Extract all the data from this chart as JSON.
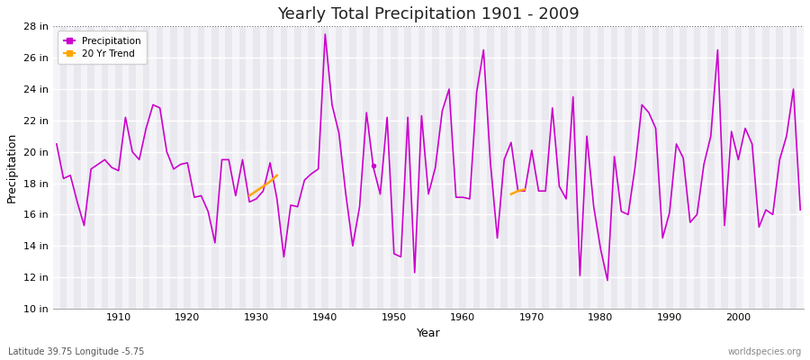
{
  "title": "Yearly Total Precipitation 1901 - 2009",
  "xlabel": "Year",
  "ylabel": "Precipitation",
  "footnote_left": "Latitude 39.75 Longitude -5.75",
  "footnote_right": "worldspecies.org",
  "ylim": [
    10,
    28
  ],
  "ytick_labels": [
    "10 in",
    "12 in",
    "14 in",
    "16 in",
    "18 in",
    "20 in",
    "22 in",
    "24 in",
    "26 in",
    "28 in"
  ],
  "ytick_values": [
    10,
    12,
    14,
    16,
    18,
    20,
    22,
    24,
    26,
    28
  ],
  "xtick_values": [
    1910,
    1920,
    1930,
    1940,
    1950,
    1960,
    1970,
    1980,
    1990,
    2000
  ],
  "fig_bg_color": "#ffffff",
  "plot_bg_color": "#e8e8ee",
  "stripe_color": "#f4f4f8",
  "line_color": "#cc00cc",
  "trend_color": "#FFA500",
  "years": [
    1901,
    1902,
    1903,
    1904,
    1905,
    1906,
    1907,
    1908,
    1909,
    1910,
    1911,
    1912,
    1913,
    1914,
    1915,
    1916,
    1917,
    1918,
    1919,
    1920,
    1921,
    1922,
    1923,
    1924,
    1925,
    1926,
    1927,
    1928,
    1929,
    1930,
    1931,
    1932,
    1933,
    1934,
    1935,
    1936,
    1937,
    1938,
    1939,
    1940,
    1941,
    1942,
    1943,
    1944,
    1945,
    1946,
    1947,
    1948,
    1949,
    1950,
    1951,
    1952,
    1953,
    1954,
    1955,
    1956,
    1957,
    1958,
    1959,
    1960,
    1961,
    1962,
    1963,
    1964,
    1965,
    1966,
    1967,
    1968,
    1969,
    1970,
    1971,
    1972,
    1973,
    1974,
    1975,
    1976,
    1977,
    1978,
    1979,
    1980,
    1981,
    1982,
    1983,
    1984,
    1985,
    1986,
    1987,
    1988,
    1989,
    1990,
    1991,
    1992,
    1993,
    1994,
    1995,
    1996,
    1997,
    1998,
    1999,
    2000,
    2001,
    2002,
    2003,
    2004,
    2005,
    2006,
    2007,
    2008,
    2009
  ],
  "precip": [
    20.5,
    18.3,
    18.5,
    16.8,
    15.3,
    18.9,
    19.2,
    19.5,
    19.0,
    18.8,
    22.2,
    20.0,
    19.5,
    21.5,
    23.0,
    22.8,
    20.0,
    18.9,
    19.2,
    19.3,
    17.1,
    17.2,
    16.2,
    14.2,
    19.5,
    19.5,
    17.2,
    19.5,
    16.8,
    17.0,
    17.5,
    19.3,
    17.0,
    13.3,
    16.6,
    16.5,
    18.2,
    18.6,
    18.9,
    27.5,
    23.0,
    21.2,
    17.3,
    14.0,
    16.5,
    22.5,
    19.0,
    17.3,
    22.2,
    13.5,
    13.3,
    22.2,
    12.3,
    22.3,
    17.3,
    19.0,
    22.6,
    24.0,
    17.1,
    17.1,
    17.0,
    23.8,
    26.5,
    19.3,
    14.5,
    19.5,
    20.6,
    17.5,
    17.5,
    20.1,
    17.5,
    17.5,
    22.8,
    17.8,
    17.0,
    23.5,
    12.1,
    21.0,
    16.5,
    13.8,
    11.8,
    19.7,
    16.2,
    16.0,
    19.0,
    23.0,
    22.5,
    21.5,
    14.5,
    16.1,
    20.5,
    19.6,
    15.5,
    16.0,
    19.2,
    21.0,
    26.5,
    15.3,
    21.3,
    19.5,
    21.5,
    20.5,
    15.2,
    16.3,
    16.0,
    19.5,
    21.0,
    24.0,
    16.3
  ],
  "trend_seg1_years": [
    1929,
    1930,
    1931,
    1932,
    1933
  ],
  "trend_seg1_vals": [
    17.2,
    17.5,
    17.8,
    18.1,
    18.5
  ],
  "trend_seg2_years": [
    1967,
    1968,
    1969
  ],
  "trend_seg2_vals": [
    17.3,
    17.5,
    17.6
  ],
  "dot_year": 1947,
  "dot_val": 19.1
}
